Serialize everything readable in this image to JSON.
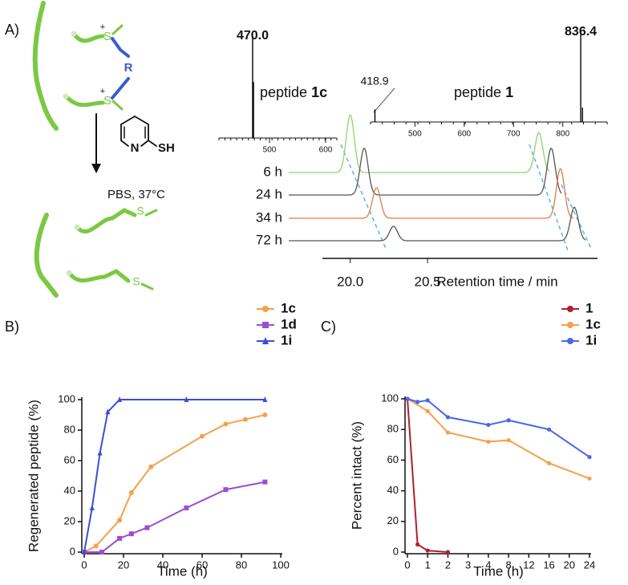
{
  "panel_labels": [
    "A)",
    "B)",
    "C)"
  ],
  "scheme": {
    "r_group": "R",
    "sulfonium_top": "S",
    "sulfonium_bottom": "S",
    "charge": "+",
    "reagent_n": "N",
    "reagent_sh": "SH",
    "conditions": "PBS, 37°C",
    "product_s_top": "S",
    "product_s_bottom": "S"
  },
  "chart_data": [
    {
      "type": "spectrum",
      "title_prefix": "peptide",
      "title_bold": "1c",
      "xlim": [
        410,
        620
      ],
      "xticks": [
        500,
        600
      ],
      "ylim": [
        0,
        100
      ],
      "x": [
        470.0,
        471.5
      ],
      "values": [
        100,
        55
      ],
      "value_labels": [
        "470.0",
        null
      ],
      "color": "#000000"
    },
    {
      "type": "spectrum",
      "title_prefix": "peptide",
      "title_bold": "1",
      "xlim": [
        410,
        890
      ],
      "xticks": [
        500,
        600,
        700,
        800
      ],
      "ylim": [
        0,
        100
      ],
      "x": [
        418.9,
        836.4,
        840
      ],
      "values": [
        14,
        100,
        16
      ],
      "value_labels": [
        "418.9",
        "836.4",
        null
      ],
      "color": "#000000"
    },
    {
      "type": "chromatogram",
      "xlabel": "Retention time / min",
      "xlim": [
        19.82,
        21.6
      ],
      "xticks": [
        {
          "value": 20.0,
          "label": "20.0"
        },
        20.5
      ],
      "ylim": [
        0,
        100
      ],
      "series": [
        {
          "name": "6 h",
          "color": "#8fd46a",
          "peaks": [
            20.0,
            21.22
          ],
          "values": [
            100,
            69
          ]
        },
        {
          "name": "24 h",
          "color": "#555555",
          "peaks": [
            20.09,
            21.3
          ],
          "values": [
            81,
            81
          ]
        },
        {
          "name": "34 h",
          "color": "#e07a4a",
          "peaks": [
            20.17,
            21.36
          ],
          "values": [
            53,
            86
          ]
        },
        {
          "name": "72 h",
          "color": "#555555",
          "peaks": [
            20.28,
            21.45
          ],
          "values": [
            25,
            58
          ]
        }
      ]
    },
    {
      "type": "line",
      "xlabel": "Time (h)",
      "ylabel": "Regenerated peptide (%)",
      "xlim": [
        0,
        100
      ],
      "ylim": [
        0,
        100
      ],
      "xticks": [
        0,
        20,
        40,
        60,
        80,
        100
      ],
      "yticks": [
        0,
        20,
        40,
        60,
        80,
        100
      ],
      "legend": "top-right",
      "series": [
        {
          "name": "1c",
          "color": "#f5a04a",
          "marker": "circle",
          "x": [
            0,
            6,
            18,
            24,
            34,
            60,
            72,
            82,
            92
          ],
          "values": [
            0,
            4,
            21,
            39,
            56,
            76,
            84,
            87,
            90
          ]
        },
        {
          "name": "1d",
          "color": "#9b4fd0",
          "marker": "square",
          "x": [
            0,
            9,
            18,
            24,
            32,
            52,
            72,
            92
          ],
          "values": [
            0,
            0,
            9,
            12,
            16,
            29,
            41,
            46
          ]
        },
        {
          "name": "1i",
          "color": "#3a4ed8",
          "marker": "triangle",
          "x": [
            0,
            4,
            8,
            12,
            18,
            52,
            92
          ],
          "values": [
            0,
            29,
            65,
            92,
            100,
            100,
            100
          ]
        }
      ]
    },
    {
      "type": "line",
      "xlabel": "Time (h)",
      "ylabel": "Percent intact (%)",
      "xscale": "by-tick",
      "xlim": [
        0,
        24
      ],
      "ylim": [
        0,
        100
      ],
      "xticks": [
        0,
        1,
        2,
        3,
        4,
        8,
        12,
        16,
        20,
        24
      ],
      "yticks": [
        0,
        20,
        40,
        60,
        80,
        100
      ],
      "legend": "top-right",
      "series": [
        {
          "name": "1",
          "color": "#b0202a",
          "marker": "circle",
          "x": [
            0,
            0.5,
            1,
            2
          ],
          "values": [
            100,
            5,
            1,
            0
          ]
        },
        {
          "name": "1c",
          "color": "#f5a04a",
          "marker": "circle",
          "x": [
            0,
            1,
            2,
            4,
            8,
            16,
            24
          ],
          "values": [
            100,
            92,
            78,
            72,
            73,
            58,
            48
          ]
        },
        {
          "name": "1i",
          "color": "#4a66e8",
          "marker": "circle",
          "x": [
            0,
            0.5,
            1,
            2,
            4,
            8,
            16,
            24
          ],
          "values": [
            100,
            98,
            99,
            88,
            83,
            86,
            80,
            62
          ]
        }
      ]
    }
  ]
}
